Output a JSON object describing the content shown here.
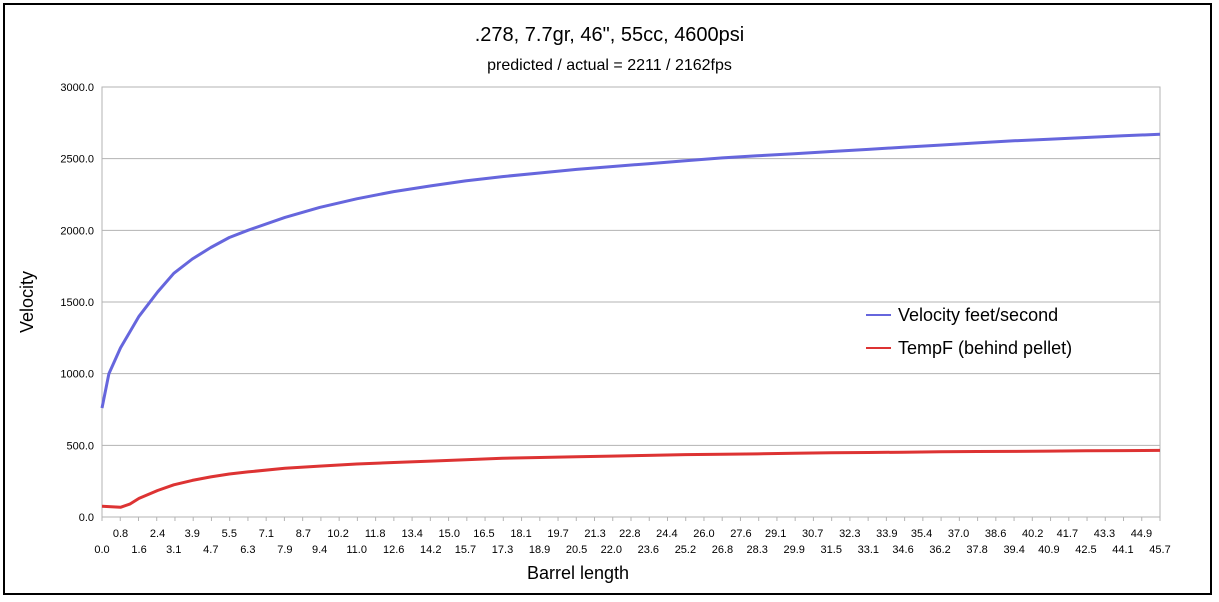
{
  "chart_data": {
    "type": "line",
    "title": ".278, 7.7gr, 46\", 55cc, 4600psi",
    "subtitle": "predicted / actual = 2211 / 2162fps",
    "xlabel": "Barrel length",
    "ylabel": "Velocity",
    "ylim": [
      0,
      3000
    ],
    "yticks": [
      "0.0",
      "500.0",
      "1000.0",
      "1500.0",
      "2000.0",
      "2500.0",
      "3000.0"
    ],
    "xlim": [
      0,
      45.7
    ],
    "xticks_upper": [
      "0.8",
      "2.4",
      "3.9",
      "5.5",
      "7.1",
      "8.7",
      "10.2",
      "11.8",
      "13.4",
      "15.0",
      "16.5",
      "18.1",
      "19.7",
      "21.3",
      "22.8",
      "24.4",
      "26.0",
      "27.6",
      "29.1",
      "30.7",
      "32.3",
      "33.9",
      "35.4",
      "37.0",
      "38.6",
      "40.2",
      "41.7",
      "43.3",
      "44.9"
    ],
    "xticks_lower": [
      "0.0",
      "1.6",
      "3.1",
      "4.7",
      "6.3",
      "7.9",
      "9.4",
      "11.0",
      "12.6",
      "14.2",
      "15.7",
      "17.3",
      "18.9",
      "20.5",
      "22.0",
      "23.6",
      "25.2",
      "26.8",
      "28.3",
      "29.9",
      "31.5",
      "33.1",
      "34.6",
      "36.2",
      "37.8",
      "39.4",
      "40.9",
      "42.5",
      "44.1",
      "45.7"
    ],
    "grid": true,
    "legend_position": "right",
    "series": [
      {
        "name": "Velocity feet/second",
        "color": "#6666dd",
        "x": [
          0.0,
          0.3,
          0.8,
          1.6,
          2.4,
          3.1,
          3.9,
          4.7,
          5.5,
          6.3,
          7.9,
          9.4,
          11.0,
          12.6,
          14.2,
          15.7,
          17.3,
          18.9,
          20.5,
          22.0,
          23.6,
          25.2,
          26.8,
          28.3,
          29.9,
          31.5,
          33.1,
          34.6,
          36.2,
          37.8,
          39.4,
          40.9,
          42.5,
          44.1,
          45.7
        ],
        "values": [
          760,
          1000,
          1180,
          1400,
          1570,
          1700,
          1800,
          1880,
          1950,
          2000,
          2090,
          2160,
          2220,
          2270,
          2310,
          2345,
          2375,
          2400,
          2425,
          2445,
          2465,
          2485,
          2505,
          2520,
          2535,
          2550,
          2565,
          2580,
          2595,
          2610,
          2625,
          2635,
          2648,
          2660,
          2670
        ]
      },
      {
        "name": "TempF (behind pellet)",
        "color": "#dd3333",
        "x": [
          0.0,
          0.4,
          0.8,
          1.2,
          1.6,
          2.4,
          3.1,
          3.9,
          4.7,
          5.5,
          6.3,
          7.9,
          9.4,
          11.0,
          12.6,
          14.2,
          15.7,
          17.3,
          18.9,
          20.5,
          22.0,
          23.6,
          25.2,
          26.8,
          28.3,
          29.9,
          31.5,
          33.1,
          34.6,
          36.2,
          37.8,
          39.4,
          40.9,
          42.5,
          44.1,
          45.7
        ],
        "values": [
          75,
          72,
          68,
          90,
          130,
          185,
          225,
          255,
          280,
          300,
          315,
          340,
          355,
          370,
          380,
          390,
          400,
          410,
          415,
          420,
          425,
          430,
          435,
          438,
          440,
          445,
          448,
          450,
          452,
          455,
          457,
          458,
          460,
          462,
          463,
          465
        ]
      }
    ]
  }
}
